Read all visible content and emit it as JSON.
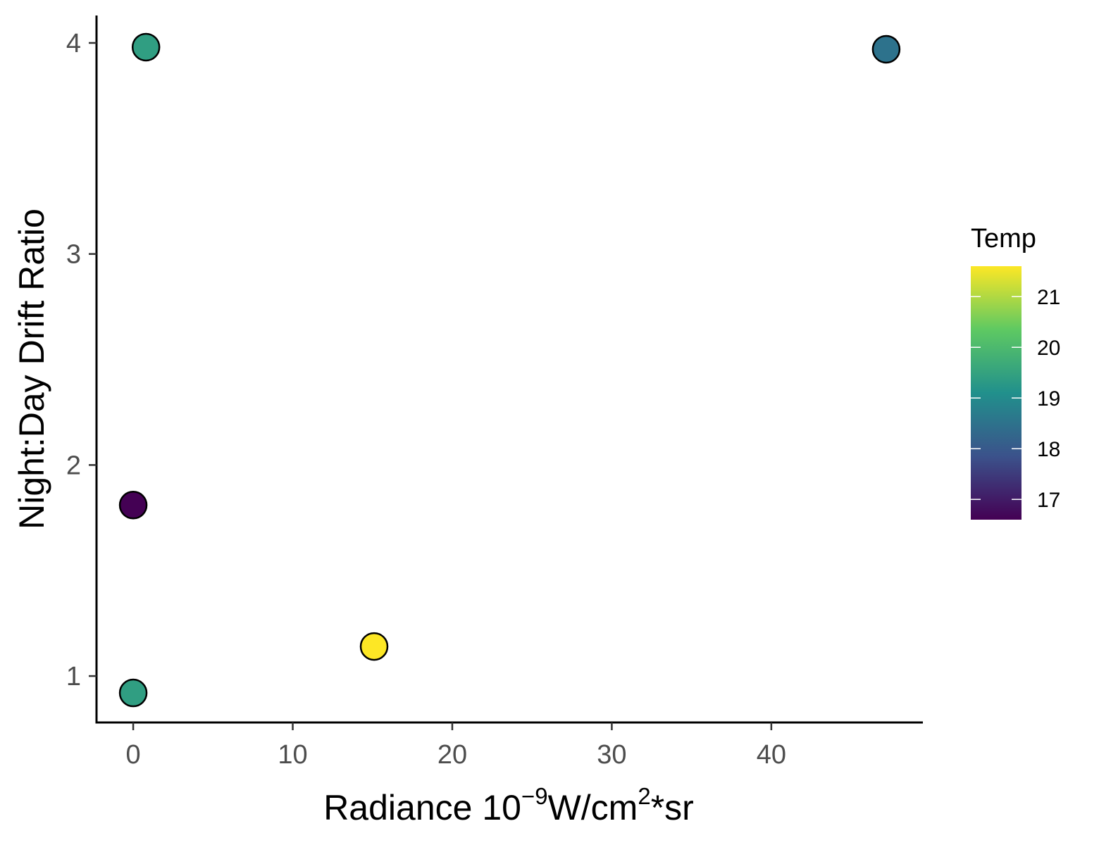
{
  "chart_data": {
    "type": "scatter",
    "title": "",
    "xlabel": {
      "base": "Radiance 10",
      "sup1": "−9",
      "mid": "W/cm",
      "sup2": "2",
      "tail": "*sr"
    },
    "ylabel": "Night:Day Drift Ratio",
    "xlim": [
      -2.3,
      49.5
    ],
    "ylim": [
      0.78,
      4.13
    ],
    "xticks": [
      0,
      10,
      20,
      30,
      40
    ],
    "yticks": [
      1,
      2,
      3,
      4
    ],
    "grid": false,
    "points": [
      {
        "x": 0.8,
        "y": 3.98,
        "temp": 19.4
      },
      {
        "x": 47.2,
        "y": 3.97,
        "temp": 18.5
      },
      {
        "x": 0.0,
        "y": 1.81,
        "temp": 16.6
      },
      {
        "x": 15.1,
        "y": 1.14,
        "temp": 21.6
      },
      {
        "x": 0.0,
        "y": 0.92,
        "temp": 19.4
      }
    ],
    "legend": {
      "title": "Temp",
      "placement": "right",
      "range": [
        16.6,
        21.6
      ],
      "ticks": [
        17,
        18,
        19,
        20,
        21
      ],
      "colors": [
        "#440154",
        "#3b528b",
        "#21908c",
        "#5ec962",
        "#fde725"
      ]
    },
    "marker_stroke": "#000000"
  }
}
